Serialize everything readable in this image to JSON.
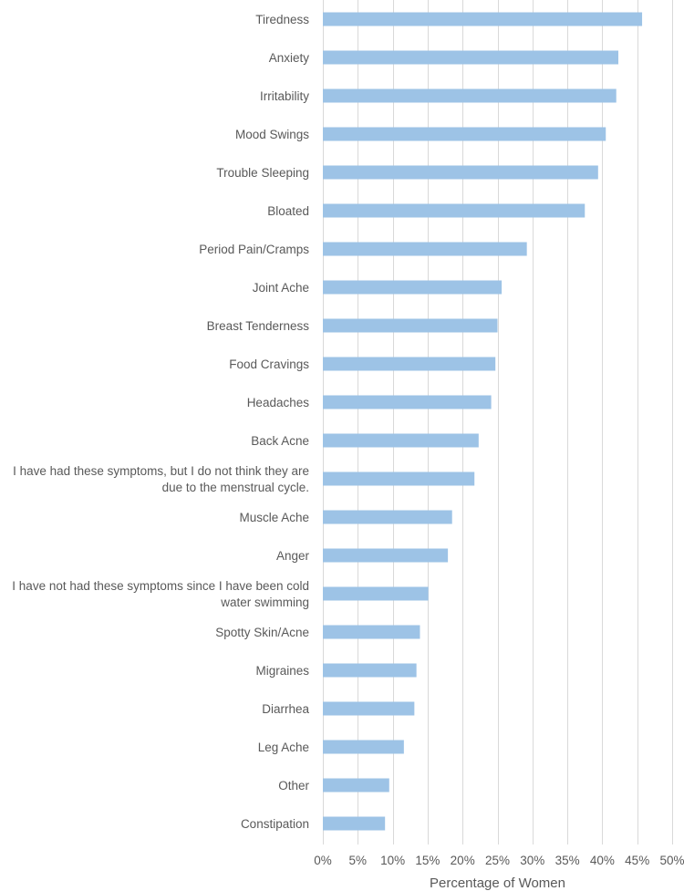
{
  "chart_data": {
    "type": "bar",
    "orientation": "horizontal",
    "categories": [
      "Tiredness",
      "Anxiety",
      "Irritability",
      "Mood Swings",
      "Trouble Sleeping",
      "Bloated",
      "Period Pain/Cramps",
      "Joint Ache",
      "Breast Tenderness",
      "Food Cravings",
      "Headaches",
      "Back Acne",
      [
        "I have had these symptoms, but I do not think they are",
        "due to the menstrual cycle."
      ],
      "Muscle Ache",
      "Anger",
      [
        "I have not had these symptoms since I have been cold",
        "water swimming"
      ],
      "Spotty Skin/Acne",
      "Migraines",
      "Diarrhea",
      "Leg Ache",
      "Other",
      "Constipation"
    ],
    "values": [
      45.7,
      42.3,
      42.0,
      40.5,
      39.4,
      37.5,
      29.2,
      25.6,
      25.0,
      24.7,
      24.1,
      22.3,
      21.7,
      18.5,
      17.9,
      15.1,
      13.9,
      13.4,
      13.1,
      11.6,
      9.5,
      8.9
    ],
    "xlim": [
      0,
      50
    ],
    "xticks": [
      0,
      5,
      10,
      15,
      20,
      25,
      30,
      35,
      40,
      45,
      50
    ],
    "tick_suffix": "%",
    "xlabel": "Percentage of Women",
    "ylabel": "",
    "title": "",
    "grid": true,
    "bar_color": "#9dc3e6",
    "grid_color": "#d9d9d9",
    "text_color": "#595959"
  }
}
